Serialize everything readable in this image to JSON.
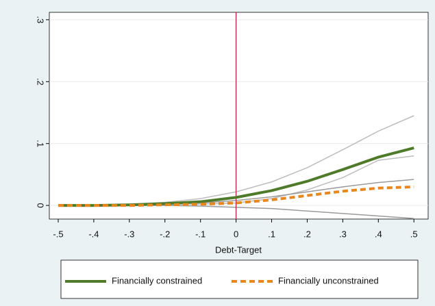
{
  "chart_data": {
    "type": "line",
    "x": [
      -0.5,
      -0.4,
      -0.3,
      -0.2,
      -0.1,
      0,
      0.1,
      0.2,
      0.3,
      0.4,
      0.5
    ],
    "x_label": "Debt-Target",
    "series": [
      {
        "name": "Financially constrained",
        "color": "#4e7a2a",
        "dash": false,
        "ci_color": "#bdbdbd",
        "values": [
          0,
          0,
          0.001,
          0.003,
          0.006,
          0.013,
          0.024,
          0.039,
          0.058,
          0.078,
          0.093
        ],
        "ci_upper": [
          0,
          0.001,
          0.002,
          0.005,
          0.011,
          0.022,
          0.038,
          0.061,
          0.09,
          0.12,
          0.145
        ],
        "ci_lower": [
          0,
          0,
          0,
          0.001,
          0.002,
          0.004,
          0.011,
          0.025,
          0.045,
          0.073,
          0.08
        ]
      },
      {
        "name": "Financially unconstrained",
        "color": "#e8871e",
        "dash": true,
        "ci_color": "#9a9a9a",
        "values": [
          0,
          0,
          0,
          0.001,
          0.002,
          0.004,
          0.009,
          0.016,
          0.023,
          0.028,
          0.03
        ],
        "ci_upper": [
          0,
          0,
          0.001,
          0.002,
          0.004,
          0.008,
          0.014,
          0.022,
          0.03,
          0.037,
          0.042
        ],
        "ci_lower": [
          0,
          0,
          0,
          0,
          -0.001,
          -0.003,
          -0.005,
          -0.009,
          -0.013,
          -0.017,
          -0.021
        ]
      }
    ],
    "xlim": [
      -0.525,
      0.54
    ],
    "ylim": [
      -0.022,
      0.312
    ],
    "xticks": [
      {
        "value": -0.5,
        "label": "-.5"
      },
      {
        "value": -0.4,
        "label": "-.4"
      },
      {
        "value": -0.3,
        "label": "-.3"
      },
      {
        "value": -0.2,
        "label": "-.2"
      },
      {
        "value": -0.1,
        "label": "-.1"
      },
      0,
      {
        "value": 0.1,
        "label": ".1"
      },
      {
        "value": 0.2,
        "label": ".2"
      },
      {
        "value": 0.3,
        "label": ".3"
      },
      {
        "value": 0.4,
        "label": ".4"
      },
      {
        "value": 0.5,
        "label": ".5"
      }
    ],
    "yticks": [
      0,
      {
        "value": 0.1,
        "label": ".1"
      },
      {
        "value": 0.2,
        "label": ".2"
      },
      {
        "value": 0.3,
        "label": ".3"
      }
    ],
    "vline": 0,
    "vline_color": "#c0143c",
    "grid": true,
    "legend": "bottom"
  }
}
